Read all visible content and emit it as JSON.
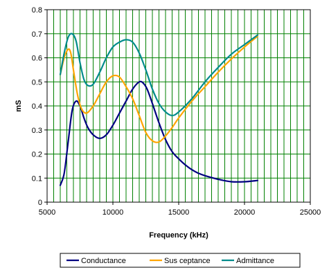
{
  "chart_data": {
    "type": "line",
    "title": "",
    "xlabel": "Frequency (kHz)",
    "ylabel": "mS",
    "xlim": [
      5000,
      25000
    ],
    "ylim": [
      0,
      0.8
    ],
    "x_ticks": [
      5000,
      10000,
      15000,
      20000,
      25000
    ],
    "x_tick_labels": [
      "5000",
      "10000",
      "15000",
      "20000",
      "25000"
    ],
    "y_ticks": [
      0,
      0.1,
      0.2,
      0.3,
      0.4,
      0.5,
      0.6,
      0.7,
      0.8
    ],
    "y_tick_labels": [
      "0",
      "0.1",
      "0.2",
      "0.3",
      "0.4",
      "0.5",
      "0.6",
      "0.7",
      "0.8"
    ],
    "vertical_grid_step": 500,
    "grid": true,
    "legend_position": "bottom",
    "colors": {
      "grid": "#008000",
      "plot_background": "#ffffff"
    },
    "series": [
      {
        "name": "Conductance",
        "color": "#000080",
        "x": [
          6000,
          6300,
          6600,
          6900,
          7200,
          7500,
          7800,
          8100,
          8500,
          9000,
          9500,
          10000,
          10500,
          11000,
          11500,
          12000,
          12300,
          12600,
          13000,
          13500,
          14000,
          14500,
          15000,
          15500,
          16000,
          16500,
          17000,
          18000,
          19000,
          20000,
          21000
        ],
        "values": [
          0.07,
          0.12,
          0.25,
          0.38,
          0.42,
          0.4,
          0.35,
          0.31,
          0.28,
          0.265,
          0.28,
          0.32,
          0.37,
          0.42,
          0.47,
          0.5,
          0.495,
          0.47,
          0.41,
          0.33,
          0.26,
          0.21,
          0.18,
          0.155,
          0.135,
          0.12,
          0.11,
          0.095,
          0.085,
          0.085,
          0.09
        ]
      },
      {
        "name": "Sus ceptance",
        "color": "#FFA500",
        "x": [
          6000,
          6300,
          6600,
          6800,
          7000,
          7300,
          7600,
          8000,
          8500,
          9000,
          9500,
          10000,
          10500,
          11000,
          11500,
          12000,
          12500,
          13000,
          13500,
          14000,
          14500,
          15000,
          16000,
          17000,
          18000,
          19000,
          20000,
          21000
        ],
        "values": [
          0.53,
          0.6,
          0.635,
          0.62,
          0.55,
          0.45,
          0.39,
          0.37,
          0.4,
          0.45,
          0.5,
          0.525,
          0.52,
          0.48,
          0.43,
          0.36,
          0.29,
          0.255,
          0.25,
          0.275,
          0.31,
          0.35,
          0.42,
          0.48,
          0.54,
          0.595,
          0.645,
          0.69
        ]
      },
      {
        "name": "Admittance",
        "color": "#008B8B",
        "x": [
          6000,
          6300,
          6600,
          6900,
          7200,
          7500,
          7800,
          8100,
          8500,
          9000,
          9500,
          10000,
          10500,
          11000,
          11500,
          12000,
          12500,
          13000,
          13500,
          14000,
          14500,
          15000,
          16000,
          17000,
          18000,
          19000,
          20000,
          21000
        ],
        "values": [
          0.53,
          0.62,
          0.685,
          0.7,
          0.67,
          0.58,
          0.51,
          0.485,
          0.49,
          0.54,
          0.6,
          0.645,
          0.665,
          0.675,
          0.665,
          0.62,
          0.55,
          0.47,
          0.41,
          0.375,
          0.36,
          0.375,
          0.43,
          0.5,
          0.56,
          0.615,
          0.655,
          0.695
        ]
      }
    ]
  }
}
